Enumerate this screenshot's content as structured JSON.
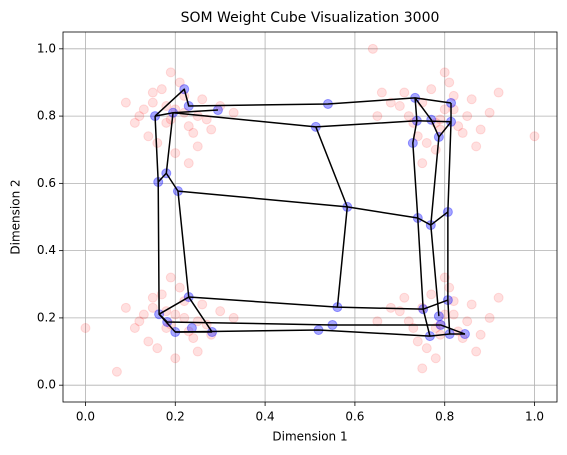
{
  "chart_data": {
    "type": "som",
    "title": "SOM Weight Cube Visualization 3000",
    "xlabel": "Dimension 1",
    "ylabel": "Dimension 2",
    "xlim": [
      -0.05,
      1.05
    ],
    "ylim": [
      -0.05,
      1.05
    ],
    "xticks": [
      {
        "value": 0,
        "label": "0.0"
      },
      0.2,
      0.4,
      0.6,
      0.8,
      {
        "value": 1,
        "label": "1.0"
      }
    ],
    "yticks": [
      {
        "value": 0,
        "label": "0.0"
      },
      0.2,
      0.4,
      0.6,
      0.8,
      {
        "value": 1,
        "label": "1.0"
      }
    ],
    "grid": true,
    "points": {
      "color": "#ff0000",
      "x": [
        0.12,
        0.15,
        0.18,
        0.2,
        0.22,
        0.25,
        0.28,
        0.3,
        0.14,
        0.17,
        0.19,
        0.23,
        0.26,
        0.33,
        0.09,
        0.11,
        0.16,
        0.21,
        0.24,
        0.27,
        0.2,
        0.18,
        0.22,
        0.15,
        0.25,
        0.13,
        0.19,
        0.23,
        0.72,
        0.75,
        0.78,
        0.8,
        0.82,
        0.85,
        0.88,
        0.7,
        0.74,
        0.77,
        0.79,
        0.83,
        0.86,
        0.9,
        0.68,
        0.73,
        0.76,
        0.81,
        0.84,
        0.78,
        0.71,
        0.8,
        0.87,
        0.75,
        0.82,
        0.79,
        0.65,
        0.92,
        0.12,
        0.15,
        0.18,
        0.2,
        0.22,
        0.25,
        0.28,
        0.3,
        0.14,
        0.17,
        0.19,
        0.23,
        0.26,
        0.33,
        0.09,
        0.11,
        0.16,
        0.21,
        0.24,
        0.27,
        0.2,
        0.18,
        0.22,
        0.15,
        0.25,
        0.13,
        0.19,
        0.07,
        0.72,
        0.75,
        0.78,
        0.8,
        0.82,
        0.85,
        0.88,
        0.7,
        0.74,
        0.77,
        0.79,
        0.83,
        0.86,
        0.9,
        0.68,
        0.73,
        0.76,
        0.81,
        0.84,
        0.78,
        0.71,
        0.8,
        0.87,
        0.75,
        0.82,
        0.79,
        0.65,
        0.92,
        0.0,
        1.0,
        0.64,
        0.66
      ],
      "y": [
        0.8,
        0.84,
        0.78,
        0.82,
        0.86,
        0.8,
        0.76,
        0.83,
        0.74,
        0.88,
        0.79,
        0.77,
        0.85,
        0.81,
        0.84,
        0.78,
        0.72,
        0.9,
        0.75,
        0.79,
        0.69,
        0.83,
        0.81,
        0.87,
        0.71,
        0.82,
        0.93,
        0.66,
        0.8,
        0.84,
        0.78,
        0.82,
        0.86,
        0.8,
        0.76,
        0.83,
        0.74,
        0.88,
        0.79,
        0.77,
        0.85,
        0.81,
        0.84,
        0.78,
        0.72,
        0.9,
        0.75,
        0.7,
        0.87,
        0.93,
        0.71,
        0.66,
        0.82,
        0.76,
        0.8,
        0.87,
        0.19,
        0.23,
        0.17,
        0.21,
        0.25,
        0.19,
        0.15,
        0.22,
        0.13,
        0.27,
        0.18,
        0.16,
        0.24,
        0.2,
        0.23,
        0.17,
        0.11,
        0.29,
        0.14,
        0.18,
        0.08,
        0.22,
        0.2,
        0.26,
        0.1,
        0.21,
        0.32,
        0.04,
        0.19,
        0.23,
        0.17,
        0.21,
        0.25,
        0.19,
        0.15,
        0.22,
        0.13,
        0.27,
        0.18,
        0.16,
        0.24,
        0.2,
        0.23,
        0.17,
        0.11,
        0.29,
        0.14,
        0.08,
        0.26,
        0.32,
        0.1,
        0.05,
        0.21,
        0.15,
        0.19,
        0.26,
        0.17,
        0.74,
        1.0,
        0.87
      ]
    },
    "neurons": {
      "color": "#0000ff",
      "x": [
        0.22,
        0.155,
        0.195,
        0.23,
        0.295,
        0.54,
        0.513,
        0.734,
        0.814,
        0.738,
        0.77,
        0.814,
        0.729,
        0.787,
        0.583,
        0.162,
        0.18,
        0.206,
        0.74,
        0.769,
        0.807,
        0.23,
        0.164,
        0.182,
        0.2,
        0.237,
        0.282,
        0.561,
        0.55,
        0.519,
        0.752,
        0.807,
        0.787,
        0.791,
        0.767,
        0.811,
        0.845
      ],
      "y": [
        0.88,
        0.8,
        0.81,
        0.83,
        0.818,
        0.836,
        0.768,
        0.854,
        0.839,
        0.786,
        0.789,
        0.783,
        0.72,
        0.738,
        0.53,
        0.604,
        0.63,
        0.577,
        0.497,
        0.476,
        0.515,
        0.262,
        0.211,
        0.188,
        0.158,
        0.17,
        0.158,
        0.232,
        0.179,
        0.164,
        0.226,
        0.253,
        0.205,
        0.179,
        0.146,
        0.152,
        0.152
      ]
    },
    "line_color": "#000000",
    "lines": [
      {
        "x": [
          0.155,
          0.22,
          0.23,
          0.54,
          0.734,
          0.814
        ],
        "y": [
          0.8,
          0.88,
          0.83,
          0.836,
          0.854,
          0.839
        ]
      },
      {
        "x": [
          0.155,
          0.195,
          0.513,
          0.738,
          0.814
        ],
        "y": [
          0.8,
          0.81,
          0.768,
          0.786,
          0.783
        ]
      },
      {
        "x": [
          0.195,
          0.295
        ],
        "y": [
          0.81,
          0.818
        ]
      },
      {
        "x": [
          0.155,
          0.162,
          0.164,
          0.2,
          0.282
        ],
        "y": [
          0.8,
          0.604,
          0.211,
          0.158,
          0.158
        ]
      },
      {
        "x": [
          0.195,
          0.18,
          0.206,
          0.23,
          0.561,
          0.752,
          0.807
        ],
        "y": [
          0.81,
          0.63,
          0.577,
          0.262,
          0.232,
          0.226,
          0.253
        ]
      },
      {
        "x": [
          0.162,
          0.18
        ],
        "y": [
          0.604,
          0.63
        ]
      },
      {
        "x": [
          0.206,
          0.583,
          0.74,
          0.769,
          0.807
        ],
        "y": [
          0.577,
          0.53,
          0.497,
          0.476,
          0.515
        ]
      },
      {
        "x": [
          0.513,
          0.583,
          0.561
        ],
        "y": [
          0.768,
          0.53,
          0.232
        ]
      },
      {
        "x": [
          0.734,
          0.738,
          0.729,
          0.74,
          0.752,
          0.767
        ],
        "y": [
          0.854,
          0.786,
          0.72,
          0.497,
          0.226,
          0.146
        ]
      },
      {
        "x": [
          0.814,
          0.814,
          0.807,
          0.807,
          0.811
        ],
        "y": [
          0.839,
          0.783,
          0.515,
          0.253,
          0.152
        ]
      },
      {
        "x": [
          0.787,
          0.769,
          0.787
        ],
        "y": [
          0.738,
          0.476,
          0.205
        ]
      },
      {
        "x": [
          0.164,
          0.182,
          0.55,
          0.791,
          0.845
        ],
        "y": [
          0.211,
          0.188,
          0.179,
          0.179,
          0.152
        ]
      },
      {
        "x": [
          0.2,
          0.519,
          0.767,
          0.811,
          0.845
        ],
        "y": [
          0.158,
          0.164,
          0.146,
          0.152,
          0.152
        ]
      },
      {
        "x": [
          0.23,
          0.164
        ],
        "y": [
          0.262,
          0.211
        ]
      },
      {
        "x": [
          0.734,
          0.77,
          0.787,
          0.814
        ],
        "y": [
          0.854,
          0.789,
          0.738,
          0.783
        ]
      },
      {
        "x": [
          0.23,
          0.282
        ],
        "y": [
          0.262,
          0.158
        ]
      }
    ]
  }
}
